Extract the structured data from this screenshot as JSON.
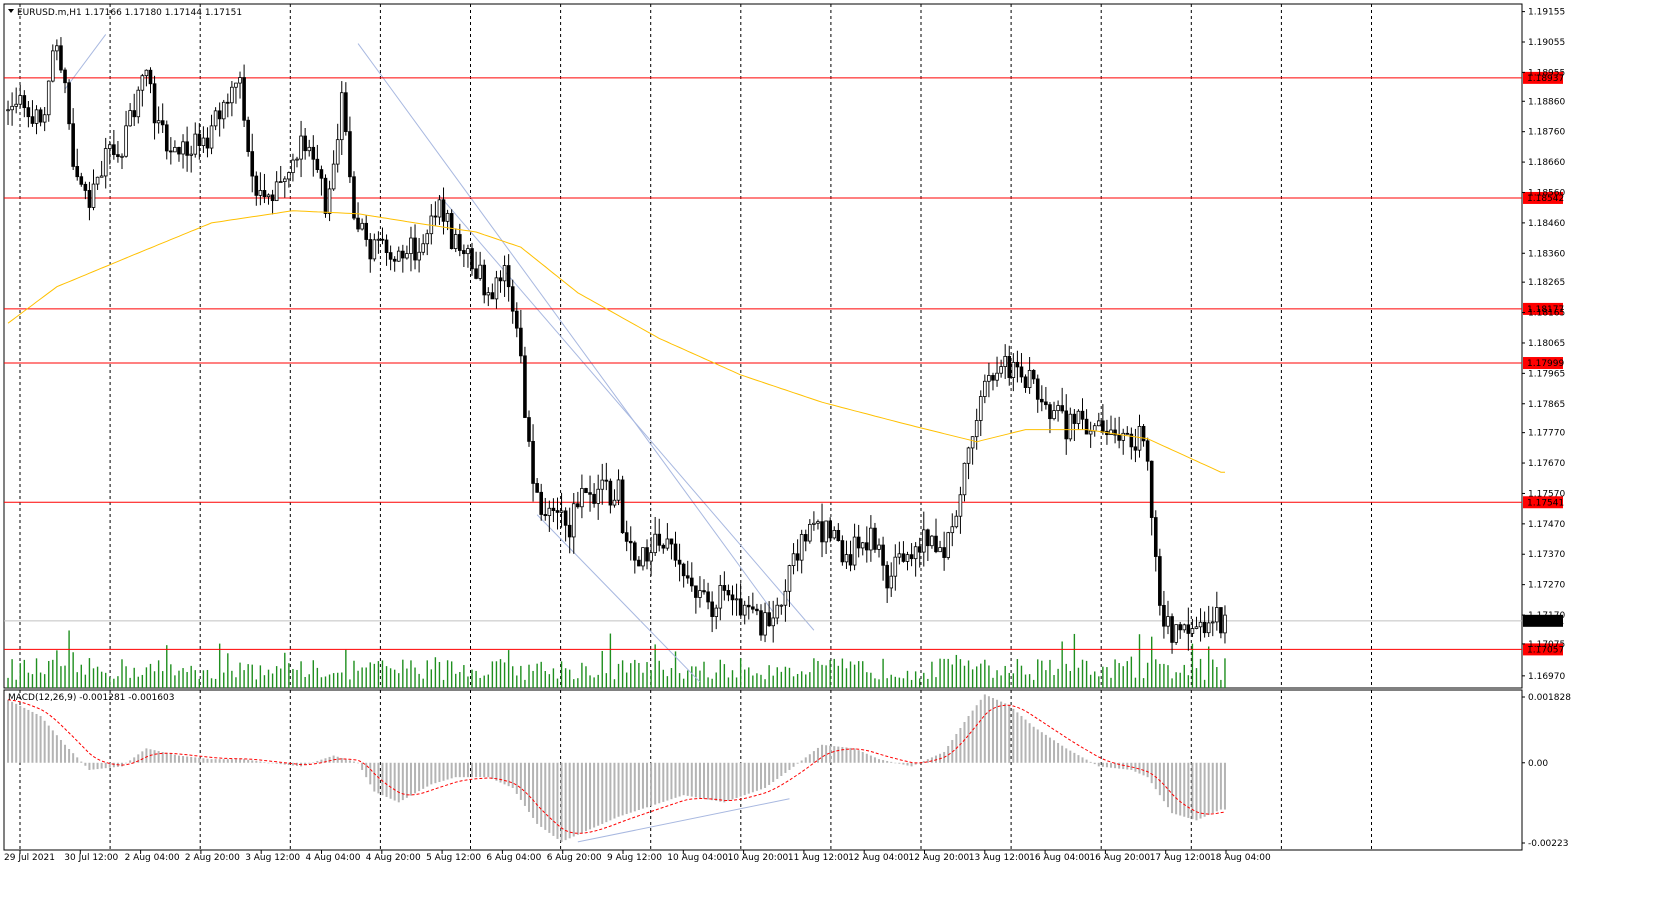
{
  "header": {
    "symbol_line": "EURUSD.m,H1  1.17166 1.17180 1.17144 1.17151"
  },
  "macd": {
    "label": "MACD(12,26,9) -0.001281 -0.001603",
    "axis_labels": [
      "0.001828",
      "0.00",
      "-0.00223"
    ],
    "axis_values": [
      0.001828,
      0.0,
      -0.00223
    ]
  },
  "price_axis": {
    "labels": [
      "1.19155",
      "1.19055",
      "1.18955",
      "1.18860",
      "1.18760",
      "1.18660",
      "1.18560",
      "1.18460",
      "1.18360",
      "1.18265",
      "1.18165",
      "1.18065",
      "1.17965",
      "1.17865",
      "1.17770",
      "1.17670",
      "1.17570",
      "1.17470",
      "1.17370",
      "1.17270",
      "1.17170",
      "1.17075",
      "1.16970"
    ],
    "min": 1.1693,
    "max": 1.1918
  },
  "time_axis": {
    "labels": [
      "29 Jul 2021",
      "30 Jul 12:00",
      "2 Aug 04:00",
      "2 Aug 20:00",
      "3 Aug 12:00",
      "4 Aug 04:00",
      "4 Aug 20:00",
      "5 Aug 12:00",
      "6 Aug 04:00",
      "6 Aug 20:00",
      "9 Aug 12:00",
      "10 Aug 04:00",
      "10 Aug 20:00",
      "11 Aug 12:00",
      "12 Aug 04:00",
      "12 Aug 20:00",
      "13 Aug 12:00",
      "16 Aug 04:00",
      "16 Aug 20:00",
      "17 Aug 12:00",
      "18 Aug 04:00"
    ]
  },
  "levels": [
    {
      "label": "1.18937",
      "value": 1.18937
    },
    {
      "label": "1.18542",
      "value": 1.18542
    },
    {
      "label": "1.18177",
      "value": 1.18177
    },
    {
      "label": "1.17999",
      "value": 1.17999
    },
    {
      "label": "1.17541",
      "value": 1.17541
    },
    {
      "label": "1.17057",
      "value": 1.17057
    }
  ],
  "current_price": {
    "label": "1.17151",
    "value": 1.17151
  },
  "colors": {
    "level_line": "#ff0000",
    "ma": "#ffc000",
    "volume": "#1f8f1f",
    "candle": "#000000",
    "macd_hist": "#b4b4b4",
    "macd_signal": "#ff0000",
    "channel": "#a8b8e0"
  },
  "chart_data": {
    "type": "candlestick",
    "ylim": [
      1.1693,
      1.1918
    ],
    "anchors": [
      [
        0,
        1.1883
      ],
      [
        3,
        1.1888
      ],
      [
        8,
        1.1879
      ],
      [
        12,
        1.1907
      ],
      [
        14,
        1.1888
      ],
      [
        17,
        1.1858
      ],
      [
        20,
        1.1853
      ],
      [
        24,
        1.1868
      ],
      [
        28,
        1.1872
      ],
      [
        32,
        1.1888
      ],
      [
        34,
        1.1894
      ],
      [
        37,
        1.1878
      ],
      [
        41,
        1.1868
      ],
      [
        46,
        1.1872
      ],
      [
        50,
        1.1876
      ],
      [
        54,
        1.1888
      ],
      [
        57,
        1.1891
      ],
      [
        60,
        1.186
      ],
      [
        64,
        1.1856
      ],
      [
        68,
        1.1861
      ],
      [
        72,
        1.1872
      ],
      [
        76,
        1.1868
      ],
      [
        78,
        1.1852
      ],
      [
        80,
        1.1866
      ],
      [
        82,
        1.1887
      ],
      [
        84,
        1.186
      ],
      [
        86,
        1.1843
      ],
      [
        90,
        1.1837
      ],
      [
        96,
        1.1834
      ],
      [
        100,
        1.1838
      ],
      [
        104,
        1.1845
      ],
      [
        106,
        1.1853
      ],
      [
        110,
        1.1838
      ],
      [
        114,
        1.1833
      ],
      [
        118,
        1.1824
      ],
      [
        122,
        1.1828
      ],
      [
        124,
        1.1815
      ],
      [
        126,
        1.18
      ],
      [
        128,
        1.177
      ],
      [
        130,
        1.1753
      ],
      [
        134,
        1.1752
      ],
      [
        138,
        1.1747
      ],
      [
        142,
        1.1758
      ],
      [
        146,
        1.1757
      ],
      [
        150,
        1.1758
      ],
      [
        152,
        1.1738
      ],
      [
        156,
        1.1737
      ],
      [
        160,
        1.174
      ],
      [
        164,
        1.1737
      ],
      [
        168,
        1.1725
      ],
      [
        172,
        1.172
      ],
      [
        176,
        1.1723
      ],
      [
        180,
        1.1718
      ],
      [
        184,
        1.1715
      ],
      [
        188,
        1.1712
      ],
      [
        192,
        1.1732
      ],
      [
        196,
        1.1742
      ],
      [
        200,
        1.1745
      ],
      [
        206,
        1.1737
      ],
      [
        212,
        1.1742
      ],
      [
        216,
        1.173
      ],
      [
        220,
        1.1738
      ],
      [
        226,
        1.1742
      ],
      [
        230,
        1.174
      ],
      [
        233,
        1.1748
      ],
      [
        236,
        1.1775
      ],
      [
        240,
        1.1795
      ],
      [
        244,
        1.18
      ],
      [
        248,
        1.1797
      ],
      [
        252,
        1.1793
      ],
      [
        256,
        1.1786
      ],
      [
        260,
        1.1778
      ],
      [
        264,
        1.1782
      ],
      [
        268,
        1.1777
      ],
      [
        272,
        1.1774
      ],
      [
        276,
        1.1772
      ],
      [
        278,
        1.1778
      ],
      [
        280,
        1.1768
      ],
      [
        283,
        1.172
      ],
      [
        285,
        1.1712
      ],
      [
        289,
        1.171
      ],
      [
        292,
        1.171
      ],
      [
        294,
        1.1712
      ],
      [
        296,
        1.1716
      ],
      [
        298,
        1.1715
      ]
    ],
    "ma_anchors": [
      [
        0,
        1.1813
      ],
      [
        12,
        1.1825
      ],
      [
        30,
        1.1835
      ],
      [
        50,
        1.1846
      ],
      [
        70,
        1.185
      ],
      [
        86,
        1.1849
      ],
      [
        100,
        1.1846
      ],
      [
        115,
        1.1843
      ],
      [
        126,
        1.1838
      ],
      [
        140,
        1.1823
      ],
      [
        160,
        1.1808
      ],
      [
        180,
        1.1796
      ],
      [
        200,
        1.1787
      ],
      [
        220,
        1.178
      ],
      [
        238,
        1.1774
      ],
      [
        250,
        1.1778
      ],
      [
        265,
        1.1778
      ],
      [
        280,
        1.1775
      ],
      [
        298,
        1.1764
      ]
    ],
    "macd_anchors": [
      [
        0,
        0.00175
      ],
      [
        8,
        0.0013
      ],
      [
        14,
        0.0005
      ],
      [
        20,
        -0.0002
      ],
      [
        28,
        -0.0001
      ],
      [
        34,
        0.0004
      ],
      [
        42,
        0.0002
      ],
      [
        50,
        0.0001
      ],
      [
        58,
        0.0001
      ],
      [
        64,
        0.0
      ],
      [
        72,
        -0.0001
      ],
      [
        80,
        0.0002
      ],
      [
        86,
        0.0
      ],
      [
        90,
        -0.0008
      ],
      [
        96,
        -0.0011
      ],
      [
        104,
        -0.0006
      ],
      [
        110,
        -0.0004
      ],
      [
        118,
        -0.0004
      ],
      [
        124,
        -0.0007
      ],
      [
        130,
        -0.0017
      ],
      [
        136,
        -0.0022
      ],
      [
        142,
        -0.0019
      ],
      [
        150,
        -0.0015
      ],
      [
        158,
        -0.0012
      ],
      [
        166,
        -0.0009
      ],
      [
        176,
        -0.0011
      ],
      [
        186,
        -0.0007
      ],
      [
        192,
        -0.0002
      ],
      [
        200,
        0.0005
      ],
      [
        208,
        0.0004
      ],
      [
        214,
        0.0001
      ],
      [
        222,
        -0.0001
      ],
      [
        230,
        0.0003
      ],
      [
        236,
        0.0013
      ],
      [
        240,
        0.0019
      ],
      [
        246,
        0.0016
      ],
      [
        252,
        0.001
      ],
      [
        260,
        0.0004
      ],
      [
        268,
        -0.0001
      ],
      [
        276,
        -0.0002
      ],
      [
        280,
        -0.0004
      ],
      [
        286,
        -0.0014
      ],
      [
        292,
        -0.0016
      ],
      [
        298,
        -0.0013
      ]
    ],
    "bars": 300
  }
}
